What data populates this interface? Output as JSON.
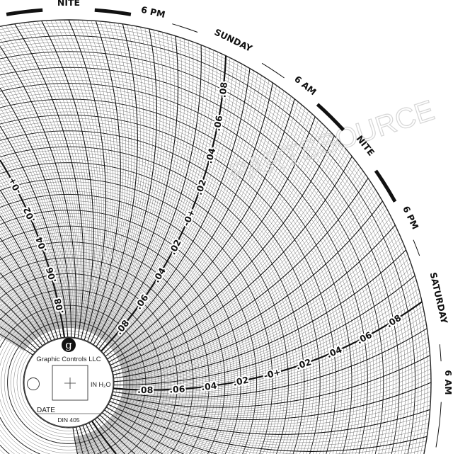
{
  "chart_data": {
    "type": "circular-chart",
    "units": "IN H2O",
    "range": [
      -0.1,
      0.1
    ],
    "minor_division": 0.002,
    "major_division": 0.01,
    "time_span": "7 days",
    "scale_labels": [
      ".08",
      ".06",
      ".04",
      ".02",
      "-0+",
      ".02",
      ".04",
      ".06",
      ".08"
    ],
    "scale_values": [
      -0.08,
      -0.06,
      -0.04,
      -0.02,
      0,
      0.02,
      0.04,
      0.06,
      0.08
    ],
    "outer_labels": [
      "NITE",
      "6 PM",
      "SUNDAY",
      "6 AM",
      "NITE",
      "6 PM",
      "SATURDAY",
      "6 AM"
    ],
    "night_label": "NITE",
    "day_labels": [
      "SUNDAY",
      "SATURDAY"
    ]
  },
  "hub": {
    "logo_letter": "g",
    "brand": "Graphic Controls LLC",
    "units_label": "IN H₂O",
    "date_label": "DATE",
    "model": "DIN 405"
  },
  "watermark": "PARTSSOURCE",
  "colors": {
    "ink": "#111111",
    "grid": "#555555",
    "paper": "#ffffff"
  }
}
